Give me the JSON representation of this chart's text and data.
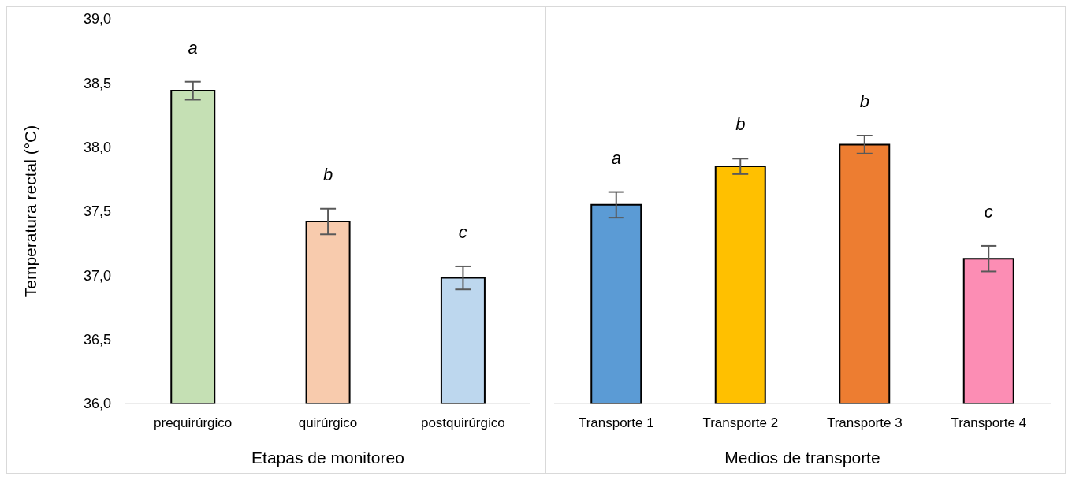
{
  "chart_data": [
    {
      "type": "bar",
      "ylabel": "Temperatura rectal (°C)",
      "xlabel": "Etapas de monitoreo",
      "categories": [
        "prequirúrgico",
        "quirúrgico",
        "postquirúrgico"
      ],
      "values": [
        38.44,
        37.42,
        36.98
      ],
      "errors": [
        0.07,
        0.1,
        0.09
      ],
      "colors": [
        "#c5e0b4",
        "#f8cbad",
        "#bdd7ee"
      ],
      "ylim": [
        36,
        39
      ],
      "yticks": [
        {
          "value": 36,
          "label": "36,0"
        },
        {
          "value": 36.5,
          "label": "36,5"
        },
        {
          "value": 37,
          "label": "37,0"
        },
        {
          "value": 37.5,
          "label": "37,5"
        },
        {
          "value": 38,
          "label": "38,0"
        },
        {
          "value": 38.5,
          "label": "38,5"
        },
        {
          "value": 39,
          "label": "39,0"
        }
      ],
      "annotations": [
        "a",
        "b",
        "c"
      ]
    },
    {
      "type": "bar",
      "xlabel": "Medios de transporte",
      "categories": [
        "Transporte 1",
        "Transporte 2",
        "Transporte 3",
        "Transporte 4"
      ],
      "values": [
        37.55,
        37.85,
        38.02,
        37.13
      ],
      "errors": [
        0.1,
        0.06,
        0.07,
        0.1
      ],
      "colors": [
        "#5b9bd5",
        "#ffc000",
        "#ed7d31",
        "#fc8db4"
      ],
      "ylim": [
        36,
        39
      ],
      "tick_labels": "x",
      "annotations": [
        "a",
        "b",
        "b",
        "c"
      ]
    }
  ]
}
